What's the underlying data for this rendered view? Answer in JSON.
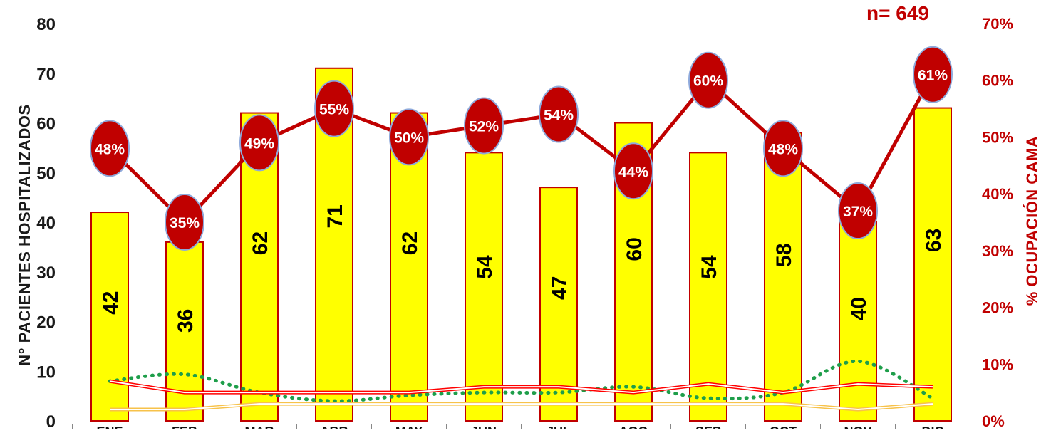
{
  "chart_data": {
    "type": "bar",
    "annotation": "n= 649",
    "ylabel": "N° PACIENTES HOSPITALIZADOS",
    "y2label": "% OCUPACIÓN CAMA",
    "ylim": [
      0,
      80
    ],
    "y_ticks": [
      "0",
      "10",
      "20",
      "30",
      "40",
      "50",
      "60",
      "70",
      "80"
    ],
    "y2lim": [
      0,
      70
    ],
    "y2_ticks": [
      "0%",
      "10%",
      "20%",
      "30%",
      "40%",
      "50%",
      "60%",
      "70%"
    ],
    "categories": [
      "ENE",
      "FEB",
      "MAR",
      "ABR",
      "MAY",
      "JUN",
      "JUL",
      "AGO",
      "SEP",
      "OCT",
      "NOV",
      "DIC"
    ],
    "bars": {
      "values": [
        42,
        36,
        62,
        71,
        62,
        54,
        47,
        60,
        54,
        58,
        40,
        63
      ],
      "labels": [
        "42",
        "36",
        "62",
        "71",
        "62",
        "54",
        "47",
        "60",
        "54",
        "58",
        "40",
        "63"
      ]
    },
    "occupancy": {
      "values": [
        48,
        35,
        49,
        55,
        50,
        52,
        54,
        44,
        60,
        48,
        37,
        61
      ],
      "labels": [
        "48%",
        "35%",
        "49%",
        "55%",
        "50%",
        "52%",
        "54%",
        "44%",
        "60%",
        "48%",
        "37%",
        "61%"
      ]
    },
    "minor_series": [
      {
        "style": "dotted",
        "values": [
          7,
          8.2,
          5,
          3.5,
          4.5,
          5,
          5,
          6,
          4,
          5,
          10.5,
          4
        ]
      },
      {
        "style": "double",
        "values": [
          7,
          5,
          5,
          5,
          5,
          6,
          6,
          5,
          6.5,
          5,
          6.5,
          6
        ]
      },
      {
        "style": "double",
        "values": [
          2,
          2,
          3,
          3,
          3,
          3,
          3,
          3,
          3,
          3,
          2,
          3
        ]
      }
    ],
    "colors": {
      "bar_fill": "#ffff00",
      "bar_stroke": "#c00000",
      "line": "#c00000",
      "marker_fill": "#c00000",
      "marker_stroke": "#8ea9db",
      "dotted": "#1e9e4a",
      "double_red": "#ff0000",
      "double_orange": "#f7c24a",
      "tick_left": "#1a1a1a",
      "tick_right": "#c00000"
    },
    "legend": "none",
    "grid": false
  }
}
